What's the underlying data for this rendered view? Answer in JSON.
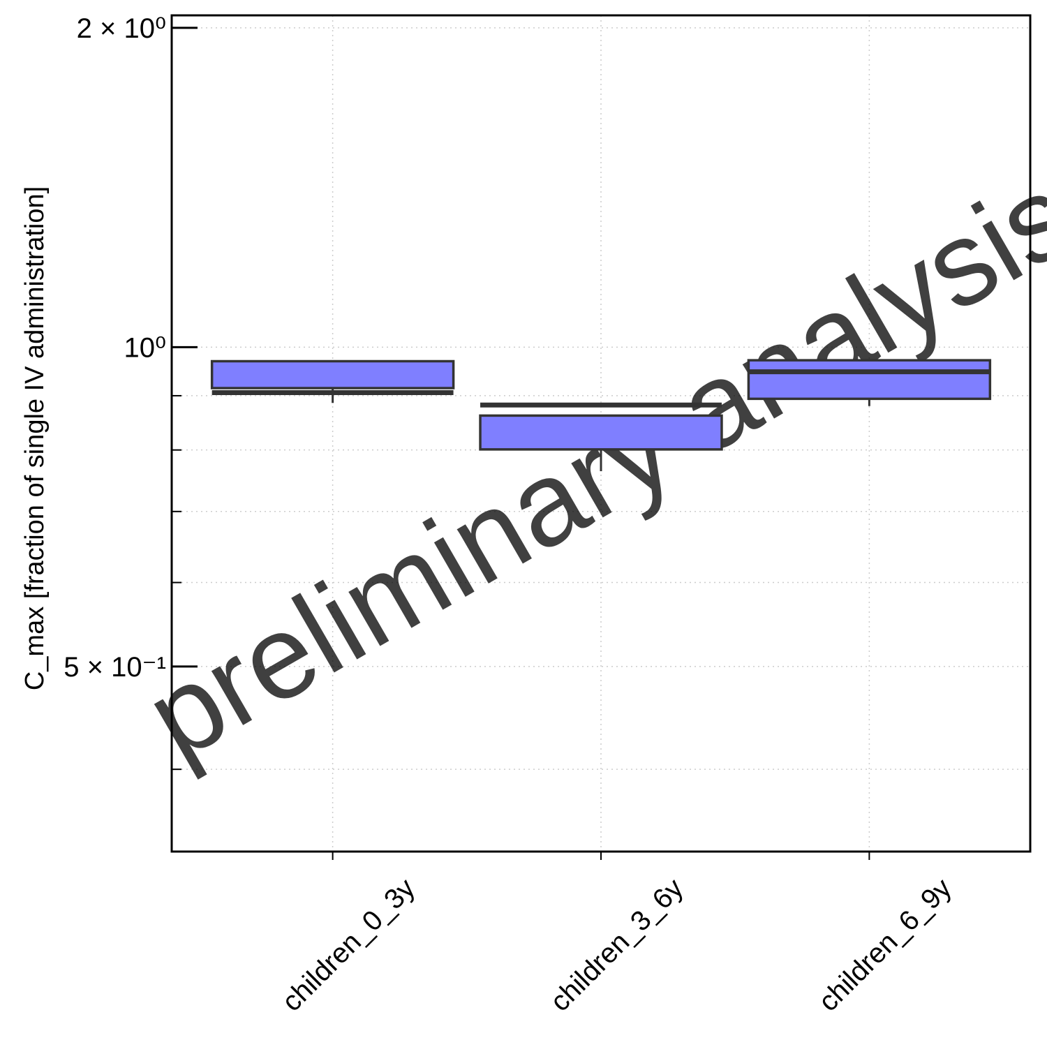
{
  "chart_data": {
    "type": "box",
    "y_label": "C_max [fraction of single IV administration]",
    "watermark": "preliminary analysis",
    "categories": [
      "children_0_3y",
      "children_3_6y",
      "children_6_9y"
    ],
    "series": [
      {
        "color": "#7f7fff",
        "min": [
          0.886,
          0.764,
          0.88
        ],
        "q1": [
          0.915,
          0.801,
          0.894
        ],
        "median": [
          0.906,
          0.882,
          0.948
        ],
        "q3": [
          0.97,
          0.862,
          0.972
        ],
        "max": [
          0.97,
          0.862,
          0.972
        ]
      }
    ],
    "y_log": true,
    "ylim": [
      0.3346,
      2.055
    ],
    "yticks": [
      {
        "value": 2,
        "label": "2 × 10⁰"
      },
      {
        "value": 1,
        "label": "10⁰"
      },
      {
        "value": 0.5,
        "label": "5 × 10⁻¹"
      }
    ],
    "minor_yticks": [
      0.4,
      0.6,
      0.7,
      0.8,
      0.9
    ],
    "grid": true
  }
}
